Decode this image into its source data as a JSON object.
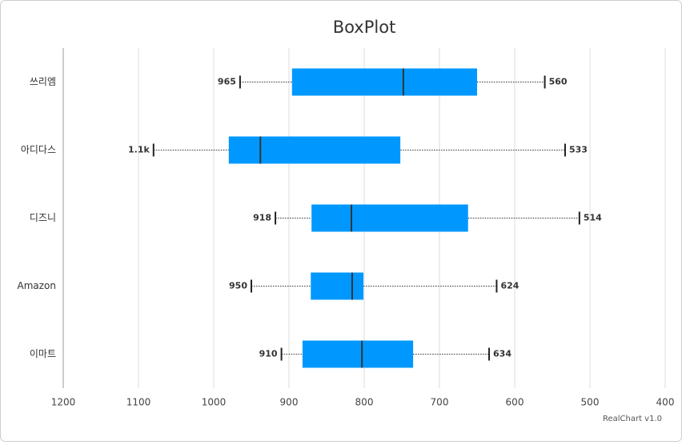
{
  "chart_data": {
    "type": "boxplot",
    "title": "BoxPlot",
    "footer": "RealChart v1.0",
    "categories": [
      "쓰리엠",
      "아디다스",
      "디즈니",
      "Amazon",
      "이마트"
    ],
    "boxes": [
      {
        "low": 560,
        "q1": 650,
        "median": 748,
        "q3": 896,
        "high": 965
      },
      {
        "low": 533,
        "q1": 752,
        "median": 938,
        "q3": 980,
        "high": 1080,
        "high_label": "1.1k"
      },
      {
        "low": 514,
        "q1": 662,
        "median": 817,
        "q3": 870,
        "high": 918
      },
      {
        "low": 624,
        "q1": 801,
        "median": 816,
        "q3": 871,
        "high": 950
      },
      {
        "low": 634,
        "q1": 735,
        "median": 803,
        "q3": 882,
        "high": 910
      }
    ],
    "color": "#0098ff",
    "xlim": [
      1200,
      400
    ],
    "xticks": [
      1200,
      1100,
      1000,
      900,
      800,
      700,
      600,
      500,
      400
    ],
    "grid": true
  }
}
